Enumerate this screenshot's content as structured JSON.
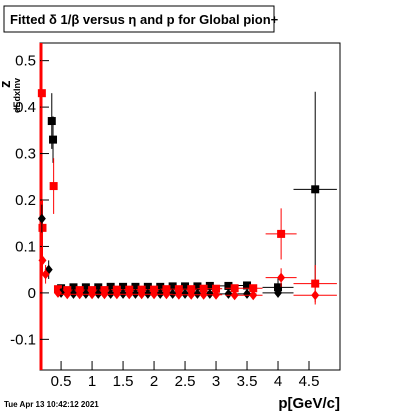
{
  "chart_data": {
    "type": "scatter",
    "title": "Fitted δ 1/β versus η and p for Global pion+",
    "y_label": "z",
    "y_label_sub": "dEdxInv",
    "x_label": "p[GeV/c]",
    "timestamp": "Tue Apr 13 10:42:12 2021",
    "xlim": [
      0.16,
      5.0
    ],
    "ylim": [
      -0.166,
      0.538
    ],
    "xticks": [
      0.5,
      1,
      1.5,
      2,
      2.5,
      3,
      3.5,
      4,
      4.5
    ],
    "yticks": [
      -0.1,
      0,
      0.1,
      0.2,
      0.3,
      0.4,
      0.5
    ],
    "series": [
      {
        "color": "#000000",
        "marker": "square",
        "x": [
          0.35,
          0.37,
          0.5,
          0.7,
          0.9,
          1.1,
          1.3,
          1.5,
          1.7,
          1.9,
          2.1,
          2.3,
          2.5,
          2.7,
          2.9,
          3.2,
          3.5,
          4.0,
          4.6
        ],
        "values": [
          0.37,
          0.33,
          0.01,
          0.012,
          0.012,
          0.012,
          0.013,
          0.013,
          0.013,
          0.013,
          0.013,
          0.014,
          0.014,
          0.014,
          0.015,
          0.015,
          0.016,
          0.012,
          0.223
        ],
        "y_errors": [
          0.06,
          0.05,
          0.004,
          0.003,
          0.003,
          0.003,
          0.003,
          0.003,
          0.003,
          0.003,
          0.004,
          0.004,
          0.004,
          0.004,
          0.005,
          0.005,
          0.006,
          0.02,
          0.21
        ],
        "x_errors": [
          0.02,
          0.02,
          0.05,
          0.1,
          0.1,
          0.1,
          0.1,
          0.1,
          0.1,
          0.1,
          0.1,
          0.1,
          0.1,
          0.1,
          0.1,
          0.15,
          0.15,
          0.25,
          0.35
        ]
      },
      {
        "color": "#ff0000",
        "marker": "square",
        "x": [
          0.19,
          0.2,
          0.38,
          0.45,
          0.6,
          0.8,
          1.0,
          1.2,
          1.4,
          1.6,
          1.8,
          2.0,
          2.2,
          2.4,
          2.6,
          2.8,
          3.0,
          3.3,
          3.6,
          4.05,
          4.6
        ],
        "values": [
          0.43,
          0.14,
          0.23,
          0.008,
          0.006,
          0.006,
          0.006,
          0.006,
          0.007,
          0.007,
          0.007,
          0.007,
          0.008,
          0.008,
          0.008,
          0.009,
          0.009,
          0.01,
          0.01,
          0.127,
          0.02
        ],
        "y_errors": [
          0.08,
          0.06,
          0.06,
          0.004,
          0.003,
          0.003,
          0.003,
          0.003,
          0.003,
          0.003,
          0.003,
          0.003,
          0.003,
          0.004,
          0.004,
          0.004,
          0.005,
          0.005,
          0.006,
          0.055,
          0.04
        ],
        "x_errors": [
          0.01,
          0.01,
          0.02,
          0.05,
          0.1,
          0.1,
          0.1,
          0.1,
          0.1,
          0.1,
          0.1,
          0.1,
          0.1,
          0.1,
          0.1,
          0.1,
          0.1,
          0.15,
          0.15,
          0.25,
          0.35
        ]
      },
      {
        "color": "#000000",
        "marker": "diamond",
        "x": [
          0.19,
          0.3,
          0.5,
          0.7,
          0.9,
          1.1,
          1.3,
          1.5,
          1.7,
          1.9,
          2.1,
          2.3,
          2.5,
          2.7,
          2.9,
          3.2,
          3.5,
          4.0
        ],
        "values": [
          0.16,
          0.05,
          0.0,
          -0.002,
          -0.002,
          -0.002,
          -0.002,
          -0.002,
          -0.002,
          -0.002,
          -0.002,
          -0.002,
          -0.002,
          -0.002,
          -0.002,
          -0.002,
          -0.002,
          0.0
        ],
        "y_errors": [
          0.03,
          0.02,
          0.003,
          0.003,
          0.003,
          0.003,
          0.003,
          0.003,
          0.003,
          0.003,
          0.003,
          0.003,
          0.003,
          0.003,
          0.003,
          0.004,
          0.004,
          0.01
        ],
        "x_errors": [
          0.01,
          0.02,
          0.05,
          0.1,
          0.1,
          0.1,
          0.1,
          0.1,
          0.1,
          0.1,
          0.1,
          0.1,
          0.1,
          0.1,
          0.1,
          0.15,
          0.15,
          0.25
        ]
      },
      {
        "color": "#ff0000",
        "marker": "diamond",
        "x": [
          0.2,
          0.25,
          0.45,
          0.6,
          0.8,
          1.0,
          1.2,
          1.4,
          1.6,
          1.8,
          2.0,
          2.2,
          2.4,
          2.6,
          2.8,
          3.0,
          3.3,
          3.6,
          4.05,
          4.6
        ],
        "values": [
          0.07,
          0.04,
          0.0,
          -0.003,
          -0.003,
          -0.003,
          -0.003,
          -0.003,
          -0.003,
          -0.003,
          -0.003,
          -0.003,
          -0.004,
          -0.004,
          -0.004,
          -0.004,
          -0.005,
          -0.005,
          0.033,
          -0.005
        ],
        "y_errors": [
          0.03,
          0.02,
          0.003,
          0.003,
          0.003,
          0.003,
          0.003,
          0.003,
          0.003,
          0.003,
          0.003,
          0.003,
          0.003,
          0.003,
          0.003,
          0.004,
          0.004,
          0.004,
          0.02,
          0.02
        ],
        "x_errors": [
          0.01,
          0.02,
          0.05,
          0.1,
          0.1,
          0.1,
          0.1,
          0.1,
          0.1,
          0.1,
          0.1,
          0.1,
          0.1,
          0.1,
          0.1,
          0.1,
          0.15,
          0.15,
          0.25,
          0.35
        ]
      }
    ]
  }
}
